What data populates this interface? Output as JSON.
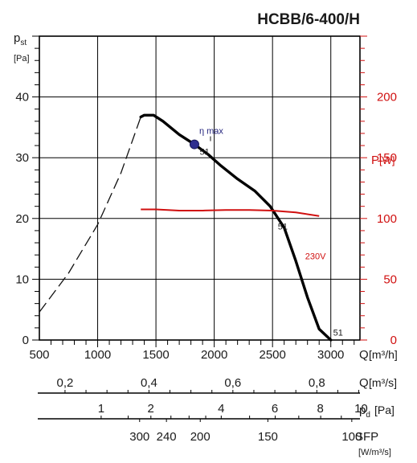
{
  "chart_data": {
    "type": "line",
    "title": "HCBB/6-400/H",
    "y_label": "p",
    "y_label_sub": "st",
    "y_unit": "[Pa]",
    "y_ticks": [
      0,
      10,
      20,
      30,
      40
    ],
    "ylim": [
      0,
      50
    ],
    "x_label": "Q",
    "x_unit": "[m³/h]",
    "x_ticks": [
      500,
      1000,
      1500,
      2000,
      2500,
      3000
    ],
    "xlim": [
      500,
      3250
    ],
    "power_label": "P",
    "power_unit": "[W]",
    "power_ticks": [
      0,
      50,
      100,
      150,
      200
    ],
    "power_lim": [
      0,
      250
    ],
    "grid": true,
    "pressure_curve": {
      "name": "51",
      "dashed": [
        [
          500,
          4.6
        ],
        [
          750,
          11
        ],
        [
          1000,
          19
        ],
        [
          1200,
          27.5
        ],
        [
          1370,
          36.7
        ]
      ],
      "solid": [
        [
          1370,
          36.7
        ],
        [
          1400,
          37
        ],
        [
          1480,
          37
        ],
        [
          1560,
          36
        ],
        [
          1700,
          33.8
        ],
        [
          1830,
          32.2
        ],
        [
          1950,
          30.5
        ],
        [
          2050,
          28.8
        ],
        [
          2200,
          26.5
        ],
        [
          2350,
          24.5
        ],
        [
          2480,
          22
        ],
        [
          2600,
          18.5
        ],
        [
          2700,
          13
        ],
        [
          2800,
          7
        ],
        [
          2900,
          1.8
        ],
        [
          3000,
          0
        ]
      ]
    },
    "power_curve": {
      "name": "230V",
      "points": [
        [
          1370,
          107.5
        ],
        [
          1500,
          107.5
        ],
        [
          1700,
          106.5
        ],
        [
          1900,
          106.5
        ],
        [
          2100,
          107
        ],
        [
          2300,
          107
        ],
        [
          2500,
          106.5
        ],
        [
          2700,
          105
        ],
        [
          2900,
          102
        ]
      ]
    },
    "eta_max": {
      "label": "η max",
      "x": 1830,
      "y": 32.2
    },
    "curve_labels": [
      {
        "text": "51",
        "x": 1875,
        "y": 30.5
      },
      {
        "text": "51",
        "x": 2545,
        "y": 18.2
      },
      {
        "text": "51",
        "x": 3020,
        "y": 0.7
      },
      {
        "text": "230V",
        "x": 2780,
        "y": 13.3
      }
    ],
    "secondary_axes": [
      {
        "label": "Q",
        "unit": "[m³/s]",
        "ticks": [
          {
            "label": "0,2",
            "x": 720
          },
          {
            "label": "0,4",
            "x": 1440
          },
          {
            "label": "0,6",
            "x": 2160
          },
          {
            "label": "0,8",
            "x": 2880
          }
        ]
      },
      {
        "label": "p",
        "label_sub": "d",
        "unit": "[Pa]",
        "ticks": [
          {
            "label": "1",
            "x": 1030
          },
          {
            "label": "2",
            "x": 1456
          },
          {
            "label": "4",
            "x": 2060
          },
          {
            "label": "6",
            "x": 2520
          },
          {
            "label": "8",
            "x": 2910
          },
          {
            "label": "10",
            "x": 3260
          }
        ]
      },
      {
        "label": "SFP",
        "unit": "[W/m³/s]",
        "ticks": [
          {
            "label": "300",
            "x": 1360
          },
          {
            "label": "240",
            "x": 1590
          },
          {
            "label": "200",
            "x": 1880
          },
          {
            "label": "150",
            "x": 2460
          },
          {
            "label": "100",
            "x": 3180
          }
        ]
      }
    ]
  }
}
